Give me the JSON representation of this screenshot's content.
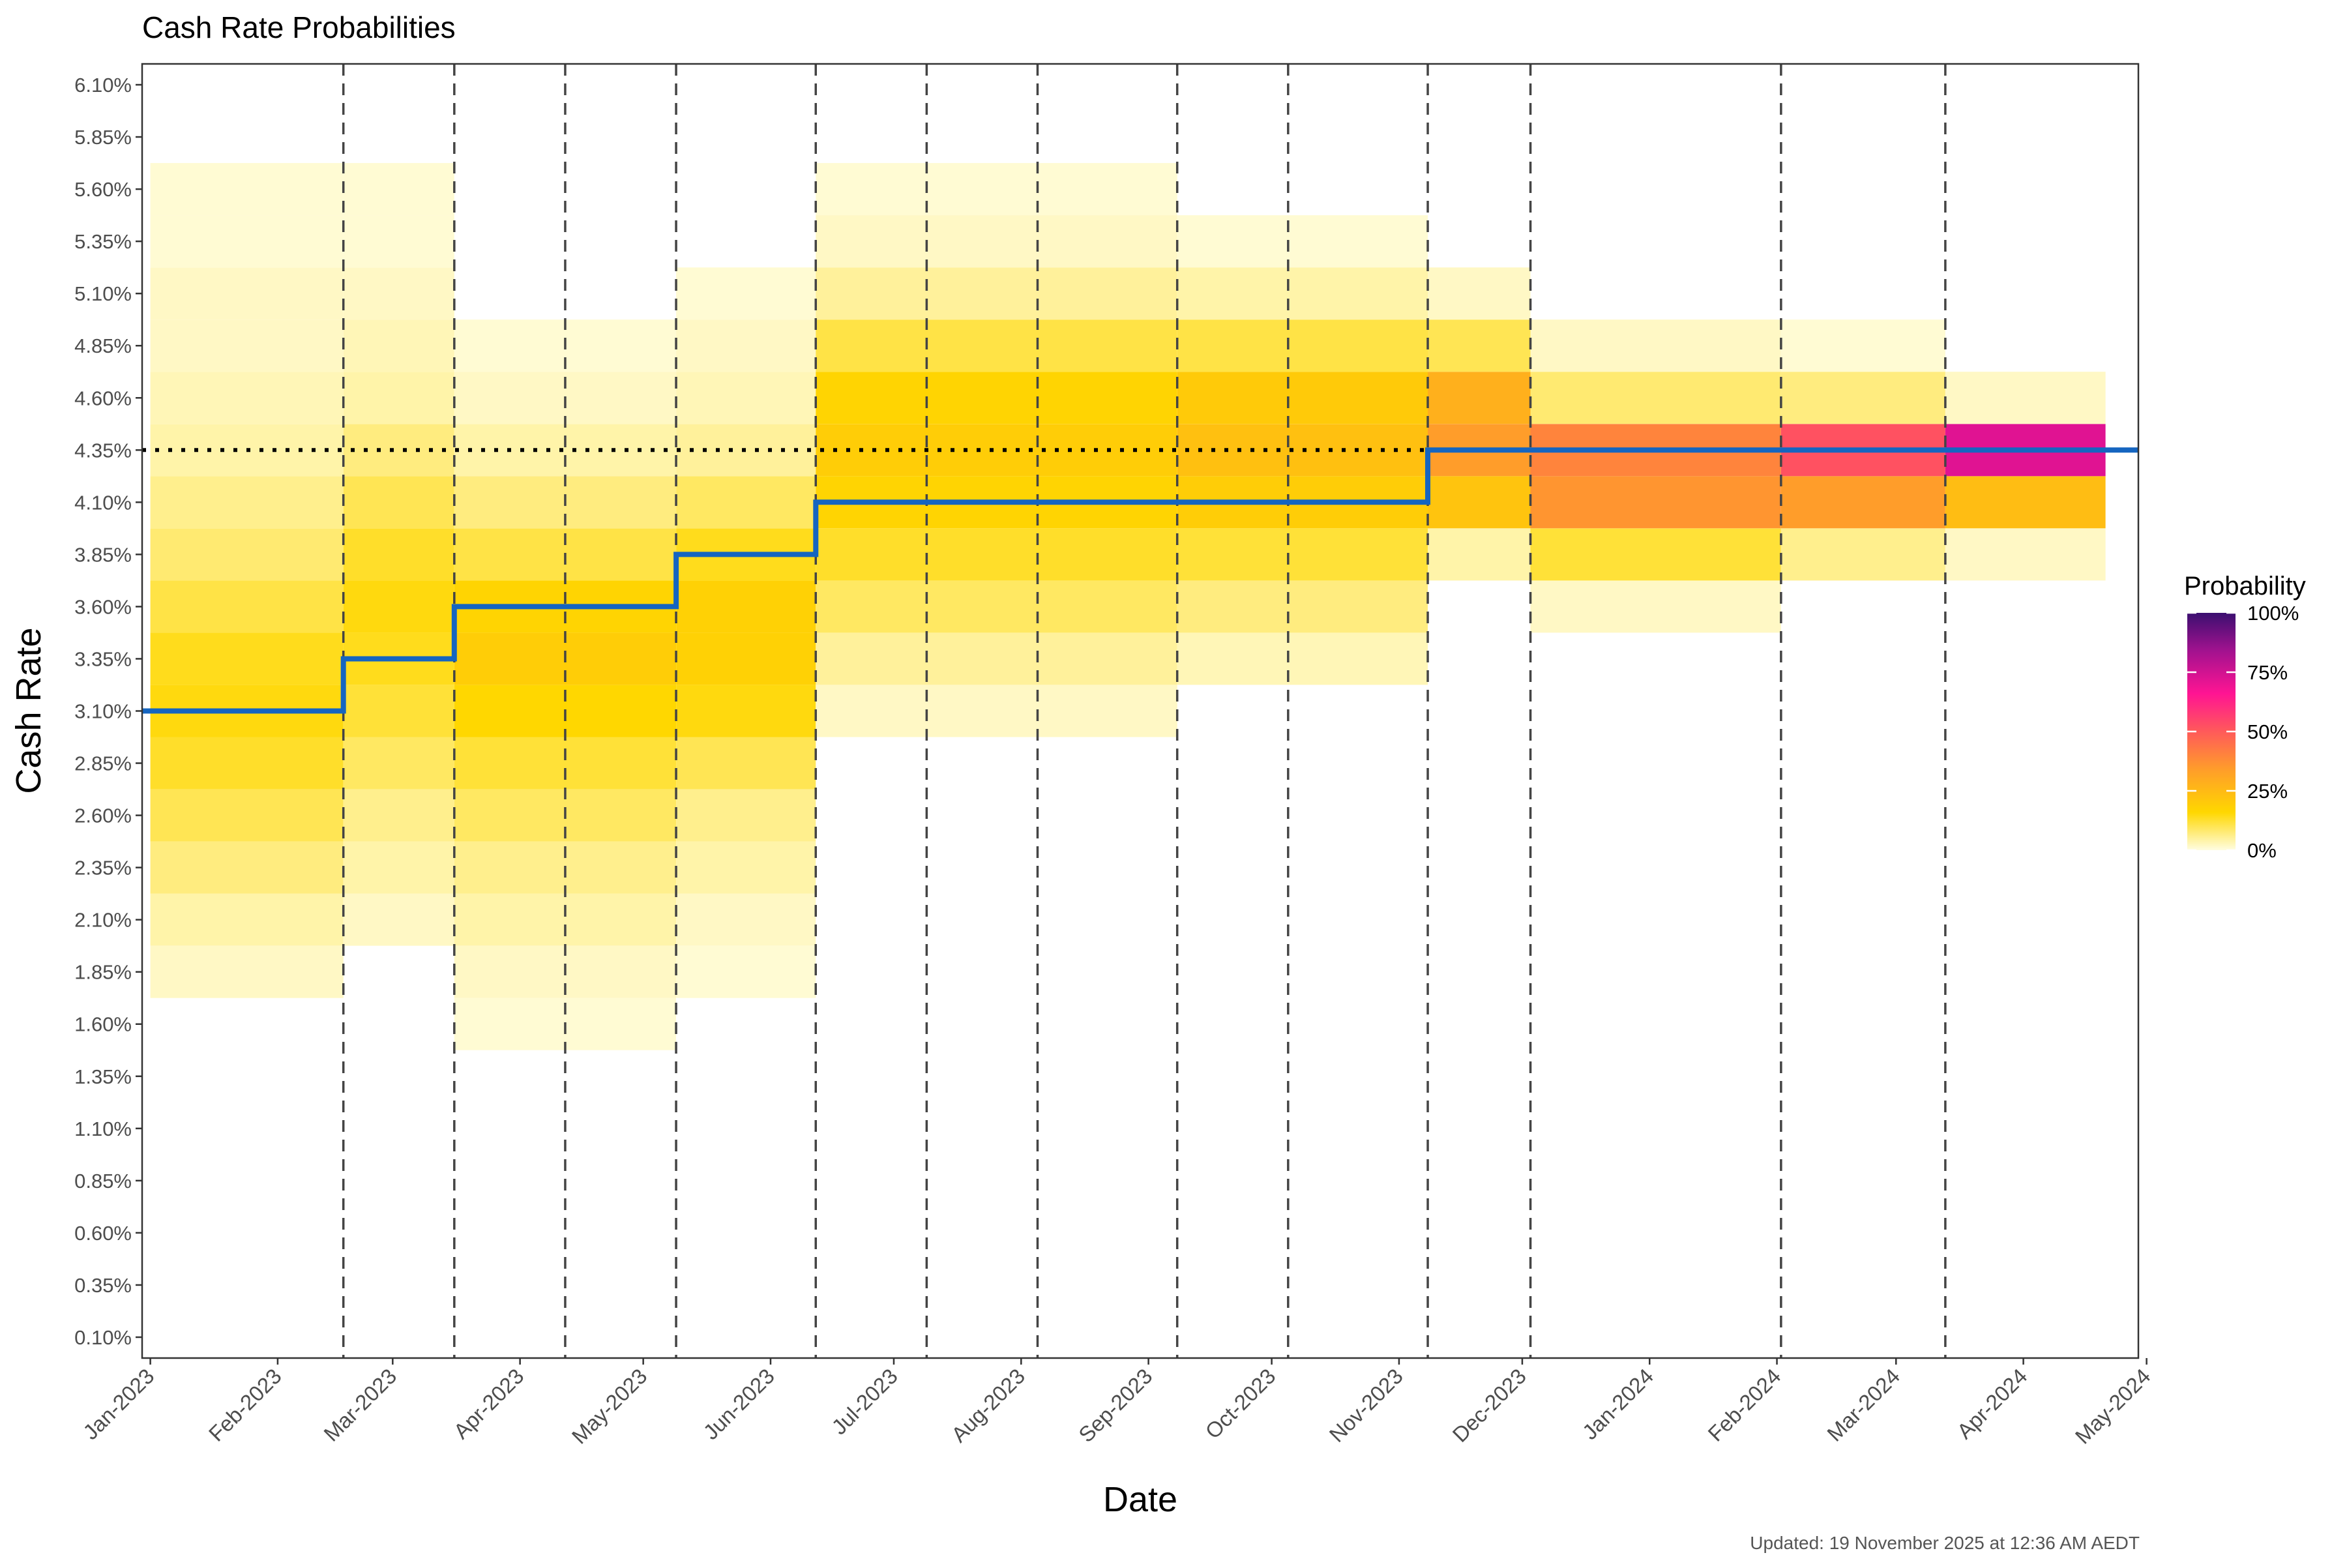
{
  "chart_data": {
    "type": "heatmap",
    "title": "Cash Rate Probabilities",
    "xlabel": "Date",
    "ylabel": "Cash Rate",
    "y_ticks": [
      "0.10%",
      "0.35%",
      "0.60%",
      "0.85%",
      "1.10%",
      "1.35%",
      "1.60%",
      "1.85%",
      "2.10%",
      "2.35%",
      "2.60%",
      "2.85%",
      "3.10%",
      "3.35%",
      "3.60%",
      "3.85%",
      "4.10%",
      "4.35%",
      "4.60%",
      "4.85%",
      "5.10%",
      "5.35%",
      "5.60%",
      "5.85%",
      "6.10%"
    ],
    "y_tick_values": [
      0.1,
      0.35,
      0.6,
      0.85,
      1.1,
      1.35,
      1.6,
      1.85,
      2.1,
      2.35,
      2.6,
      2.85,
      3.1,
      3.35,
      3.6,
      3.85,
      4.1,
      4.35,
      4.6,
      4.85,
      5.1,
      5.35,
      5.6,
      5.85,
      6.1
    ],
    "ylim": [
      0.0,
      6.2
    ],
    "x_ticks": [
      "Jan-2023",
      "Feb-2023",
      "Mar-2023",
      "Apr-2023",
      "May-2023",
      "Jun-2023",
      "Jul-2023",
      "Aug-2023",
      "Sep-2023",
      "Oct-2023",
      "Nov-2023",
      "Dec-2023",
      "Jan-2024",
      "Feb-2024",
      "Mar-2024",
      "Apr-2024",
      "May-2024"
    ],
    "x_tick_days": [
      0,
      31,
      59,
      90,
      120,
      151,
      181,
      212,
      243,
      273,
      304,
      334,
      365,
      396,
      425,
      456,
      486
    ],
    "xlim_days": [
      -2,
      484
    ],
    "meeting_day_offsets": [
      47,
      74,
      101,
      128,
      162,
      189,
      216,
      250,
      277,
      311,
      336,
      397,
      437
    ],
    "current_rate": 4.35,
    "cash_rate_steps": [
      {
        "day": -2,
        "rate": 3.1
      },
      {
        "day": 47,
        "rate": 3.35
      },
      {
        "day": 74,
        "rate": 3.6
      },
      {
        "day": 128,
        "rate": 3.85
      },
      {
        "day": 162,
        "rate": 4.1
      },
      {
        "day": 311,
        "rate": 4.35
      },
      {
        "day": 484,
        "rate": 4.35
      }
    ],
    "heatmap_periods": [
      {
        "start": 0,
        "end": 47,
        "rates": [
          [
            1.85,
            0.02
          ],
          [
            2.1,
            0.04
          ],
          [
            2.35,
            0.07
          ],
          [
            2.6,
            0.1
          ],
          [
            2.85,
            0.13
          ],
          [
            3.1,
            0.15
          ],
          [
            3.35,
            0.14
          ],
          [
            3.6,
            0.11
          ],
          [
            3.85,
            0.08
          ],
          [
            4.1,
            0.06
          ],
          [
            4.35,
            0.04
          ],
          [
            4.6,
            0.03
          ],
          [
            4.85,
            0.02
          ],
          [
            5.1,
            0.02
          ],
          [
            5.35,
            0.01
          ],
          [
            5.6,
            0.01
          ]
        ]
      },
      {
        "start": 47,
        "end": 74,
        "rates": [
          [
            2.1,
            0.02
          ],
          [
            2.35,
            0.04
          ],
          [
            2.6,
            0.06
          ],
          [
            2.85,
            0.09
          ],
          [
            3.1,
            0.12
          ],
          [
            3.35,
            0.14
          ],
          [
            3.6,
            0.15
          ],
          [
            3.85,
            0.13
          ],
          [
            4.1,
            0.1
          ],
          [
            4.35,
            0.07
          ],
          [
            4.6,
            0.04
          ],
          [
            4.85,
            0.03
          ],
          [
            5.1,
            0.02
          ],
          [
            5.35,
            0.01
          ],
          [
            5.6,
            0.01
          ]
        ]
      },
      {
        "start": 74,
        "end": 128,
        "rates": [
          [
            1.6,
            0.01
          ],
          [
            1.85,
            0.02
          ],
          [
            2.1,
            0.04
          ],
          [
            2.35,
            0.06
          ],
          [
            2.6,
            0.09
          ],
          [
            2.85,
            0.12
          ],
          [
            3.1,
            0.16
          ],
          [
            3.35,
            0.19
          ],
          [
            3.6,
            0.17
          ],
          [
            3.85,
            0.11
          ],
          [
            4.1,
            0.07
          ],
          [
            4.35,
            0.04
          ],
          [
            4.6,
            0.02
          ],
          [
            4.85,
            0.01
          ]
        ]
      },
      {
        "start": 128,
        "end": 162,
        "rates": [
          [
            1.85,
            0.01
          ],
          [
            2.1,
            0.02
          ],
          [
            2.35,
            0.04
          ],
          [
            2.6,
            0.06
          ],
          [
            2.85,
            0.1
          ],
          [
            3.1,
            0.15
          ],
          [
            3.35,
            0.18
          ],
          [
            3.6,
            0.18
          ],
          [
            3.85,
            0.14
          ],
          [
            4.1,
            0.09
          ],
          [
            4.35,
            0.05
          ],
          [
            4.6,
            0.03
          ],
          [
            4.85,
            0.02
          ],
          [
            5.1,
            0.01
          ]
        ]
      },
      {
        "start": 162,
        "end": 250,
        "rates": [
          [
            3.1,
            0.02
          ],
          [
            3.35,
            0.05
          ],
          [
            3.6,
            0.09
          ],
          [
            3.85,
            0.13
          ],
          [
            4.1,
            0.17
          ],
          [
            4.35,
            0.19
          ],
          [
            4.6,
            0.17
          ],
          [
            4.85,
            0.11
          ],
          [
            5.1,
            0.05
          ],
          [
            5.35,
            0.02
          ],
          [
            5.6,
            0.01
          ]
        ]
      },
      {
        "start": 250,
        "end": 311,
        "rates": [
          [
            3.35,
            0.03
          ],
          [
            3.6,
            0.07
          ],
          [
            3.85,
            0.12
          ],
          [
            4.1,
            0.19
          ],
          [
            4.35,
            0.23
          ],
          [
            4.6,
            0.2
          ],
          [
            4.85,
            0.11
          ],
          [
            5.1,
            0.04
          ],
          [
            5.35,
            0.01
          ]
        ]
      },
      {
        "start": 311,
        "end": 336,
        "rates": [
          [
            3.85,
            0.04
          ],
          [
            4.1,
            0.22
          ],
          [
            4.35,
            0.34
          ],
          [
            4.6,
            0.28
          ],
          [
            4.85,
            0.1
          ],
          [
            5.1,
            0.02
          ]
        ]
      },
      {
        "start": 336,
        "end": 397,
        "rates": [
          [
            3.6,
            0.02
          ],
          [
            3.85,
            0.12
          ],
          [
            4.1,
            0.36
          ],
          [
            4.35,
            0.4
          ],
          [
            4.6,
            0.08
          ],
          [
            4.85,
            0.02
          ]
        ]
      },
      {
        "start": 397,
        "end": 437,
        "rates": [
          [
            3.85,
            0.06
          ],
          [
            4.1,
            0.34
          ],
          [
            4.35,
            0.52
          ],
          [
            4.6,
            0.07
          ],
          [
            4.85,
            0.01
          ]
        ]
      },
      {
        "start": 437,
        "end": 476,
        "rates": [
          [
            3.85,
            0.02
          ],
          [
            4.1,
            0.24
          ],
          [
            4.35,
            0.72
          ],
          [
            4.6,
            0.02
          ]
        ]
      }
    ],
    "legend": {
      "title": "Probability",
      "position": "right",
      "labels": [
        "100%",
        "75%",
        "50%",
        "25%",
        "0%"
      ],
      "colors": [
        "#fffde1",
        "#ffd700",
        "#ff9d2a",
        "#ff5a5a",
        "#ff1493",
        "#a2128f",
        "#3b0f70"
      ]
    },
    "colors": {
      "step_line": "#1565c0",
      "current_rate_line": "#000000",
      "meeting_lines": "#444444"
    }
  },
  "footer": {
    "updated": "Updated: 19 November 2025 at 12:36 AM AEDT"
  }
}
